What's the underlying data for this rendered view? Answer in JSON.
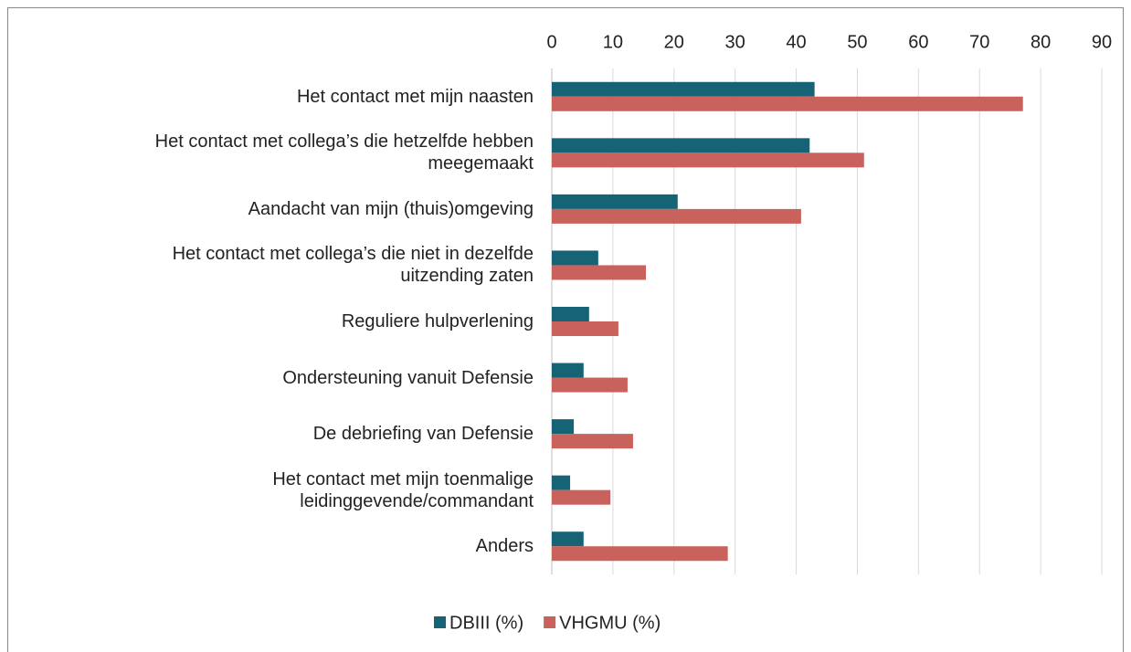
{
  "chart_data": {
    "type": "bar",
    "orientation": "horizontal",
    "categories": [
      "Het contact met mijn naasten",
      "Het contact met collega’s die hetzelfde hebben\nmeegemaakt",
      "Aandacht van mijn (thuis)omgeving",
      "Het contact met collega’s die niet in dezelfde\nuitzending zaten",
      "Reguliere hulpverlening",
      "Ondersteuning vanuit Defensie",
      "De debriefing van Defensie",
      "Het contact met mijn toenmalige\nleidinggevende/commandant",
      "Anders"
    ],
    "series": [
      {
        "name": "DBIII (%)",
        "color": "#156374",
        "values": [
          43.0,
          42.2,
          20.6,
          7.6,
          6.1,
          5.2,
          3.6,
          3.0,
          5.2
        ]
      },
      {
        "name": "VHGMU (%)",
        "color": "#c9625d",
        "values": [
          77.1,
          51.1,
          40.8,
          15.4,
          10.9,
          12.4,
          13.3,
          9.6,
          28.8
        ]
      }
    ],
    "xlim": [
      0,
      90
    ],
    "xticks": [
      0,
      10,
      20,
      30,
      40,
      50,
      60,
      70,
      80,
      90
    ],
    "grid": true,
    "legend": "bottom"
  }
}
